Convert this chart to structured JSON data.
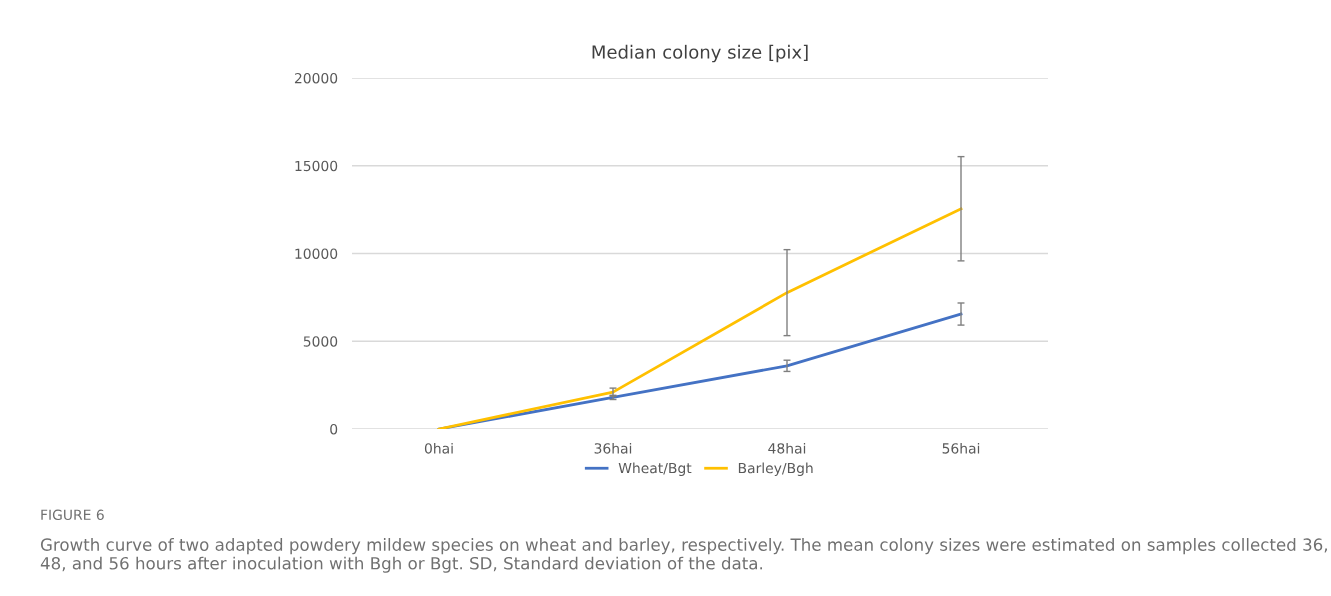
{
  "chart_data": {
    "type": "line",
    "title": "Median colony size [pix]",
    "categories": [
      "0hai",
      "36hai",
      "48hai",
      "56hai"
    ],
    "series": [
      {
        "name": "Wheat/Bgt",
        "color": "#4472c4",
        "values": [
          0,
          1800,
          3600,
          6550
        ],
        "errors": [
          null,
          120,
          320,
          630
        ]
      },
      {
        "name": "Barley/Bgh",
        "color": "#ffc000",
        "values": [
          0,
          2100,
          7770,
          12550
        ],
        "errors": [
          null,
          230,
          2450,
          2970
        ]
      }
    ],
    "ylim": [
      0,
      20000
    ],
    "yticks": [
      0,
      5000,
      10000,
      15000,
      20000
    ],
    "grid": "y",
    "legend": "bottom",
    "marker": "none",
    "line_style": "solid",
    "annotations": [
      "FIGURE 6",
      "Growth curve of two adapted powdery mildew species on wheat and barley, respectively. The mean colony sizes were estimated on samples collected 36, 48, and 56 hours after inoculation with Bgh or Bgt. SD, Standard deviation of the data."
    ]
  }
}
